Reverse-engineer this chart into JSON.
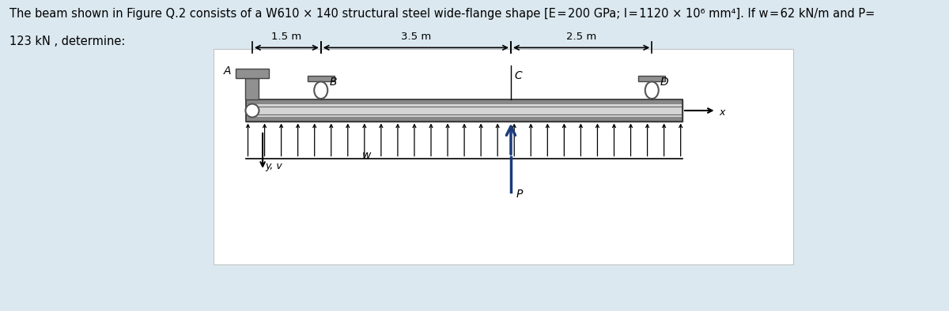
{
  "bg_color": "#dbe8f0",
  "panel_bg": "#ffffff",
  "title_line1": "The beam shown in Figure Q.2 consists of a W610 × 140 structural steel wide-flange shape [E = 200 GPa; I = 1120 × 10⁶ mm⁴]. If w = 62 kN/m and P=",
  "title_line2": "123 kN , determine:",
  "label_A": "A",
  "label_B": "B",
  "label_C": "C",
  "label_D": "D",
  "label_w": "w",
  "label_P": "P",
  "label_x": "x",
  "label_yv": "y, v",
  "dim_AB": "1.5 m",
  "dim_BC": "3.5 m",
  "dim_CD": "2.5 m",
  "beam_color_light": "#d4d4d4",
  "beam_color_dark": "#888888",
  "beam_color_mid": "#b8b8b8",
  "support_color": "#909090",
  "point_load_color": "#1a3a7a",
  "n_dist_arrows": 27
}
